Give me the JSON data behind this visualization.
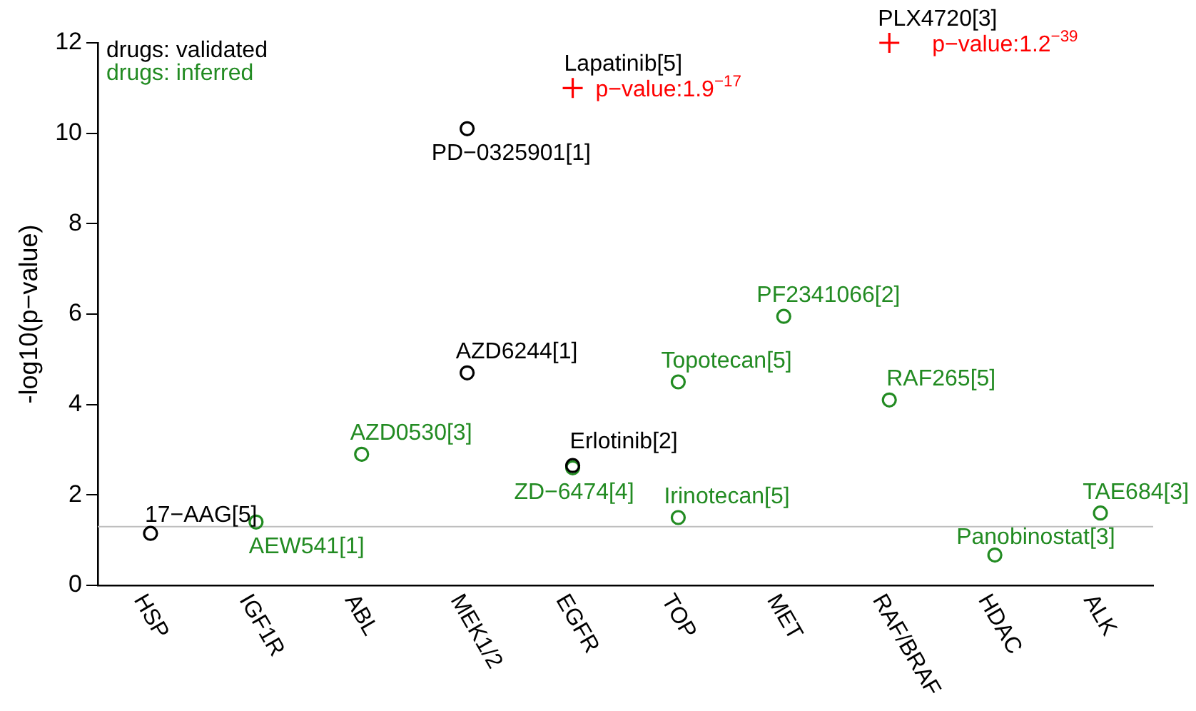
{
  "chart_data": {
    "type": "scatter",
    "categories": [
      "HSP",
      "IGF1R",
      "ABL",
      "MEK1/2",
      "EGFR",
      "TOP",
      "MET",
      "RAF/BRAF",
      "HDAC",
      "ALK"
    ],
    "ylabel": "-log10(p−value)",
    "ylim": [
      0,
      12
    ],
    "yticks": [
      0,
      2,
      4,
      6,
      8,
      10,
      12
    ],
    "grid": false,
    "legend": "top left",
    "ref_lines": [
      {
        "axis": "y",
        "value": 1.3,
        "color": "#bebebe"
      }
    ],
    "series": [
      {
        "name": "drugs: validated",
        "color": "#000000",
        "marker": "circle",
        "x": [
          "HSP",
          "MEK1/2",
          "MEK1/2",
          "EGFR"
        ],
        "values": [
          1.15,
          10.1,
          4.7,
          2.65
        ]
      },
      {
        "name": "drugs: inferred",
        "color": "#228b22",
        "marker": "circle",
        "x": [
          "IGF1R",
          "ABL",
          "EGFR",
          "TOP",
          "TOP",
          "MET",
          "RAF/BRAF",
          "HDAC",
          "ALK"
        ],
        "values": [
          1.4,
          2.9,
          2.6,
          4.5,
          1.5,
          5.95,
          4.1,
          0.67,
          1.6
        ]
      },
      {
        "color": "#ff0000",
        "marker": "cross",
        "x": [
          "EGFR",
          "RAF/BRAF"
        ],
        "values": [
          11.0,
          12.0
        ]
      }
    ],
    "annotations": [
      {
        "text": "17−AAG[5]",
        "x": "HSP",
        "y": 1.15
      },
      {
        "text": "AEW541[1]",
        "x": "IGF1R",
        "y": 1.4
      },
      {
        "text": "AZD0530[3]",
        "x": "ABL",
        "y": 2.9
      },
      {
        "text": "PD−0325901[1]",
        "x": "MEK1/2",
        "y": 10.1
      },
      {
        "text": "AZD6244[1]",
        "x": "MEK1/2",
        "y": 4.7
      },
      {
        "text": "Erlotinib[2]",
        "x": "EGFR",
        "y": 2.65
      },
      {
        "text": "ZD−6474[4]",
        "x": "EGFR",
        "y": 2.6
      },
      {
        "text": "Topotecan[5]",
        "x": "TOP",
        "y": 4.5
      },
      {
        "text": "Irinotecan[5]",
        "x": "TOP",
        "y": 1.5
      },
      {
        "text": "PF2341066[2]",
        "x": "MET",
        "y": 5.95
      },
      {
        "text": "RAF265[5]",
        "x": "RAF/BRAF",
        "y": 4.1
      },
      {
        "text": "Panobinostat[3]",
        "x": "HDAC",
        "y": 0.67
      },
      {
        "text": "TAE684[3]",
        "x": "ALK",
        "y": 1.6
      },
      {
        "text": "Lapatinib[5]",
        "x": "EGFR",
        "y": 11.0
      },
      {
        "text": "p−value:1.9$^{−17}$",
        "x": "EGFR",
        "y": 11.0
      },
      {
        "text": "PLX4720[3]",
        "x": "RAF/BRAF",
        "y": 12.0
      },
      {
        "text": "p−value:1.2$^{−39}$",
        "x": "RAF/BRAF",
        "y": 12.0
      }
    ]
  }
}
